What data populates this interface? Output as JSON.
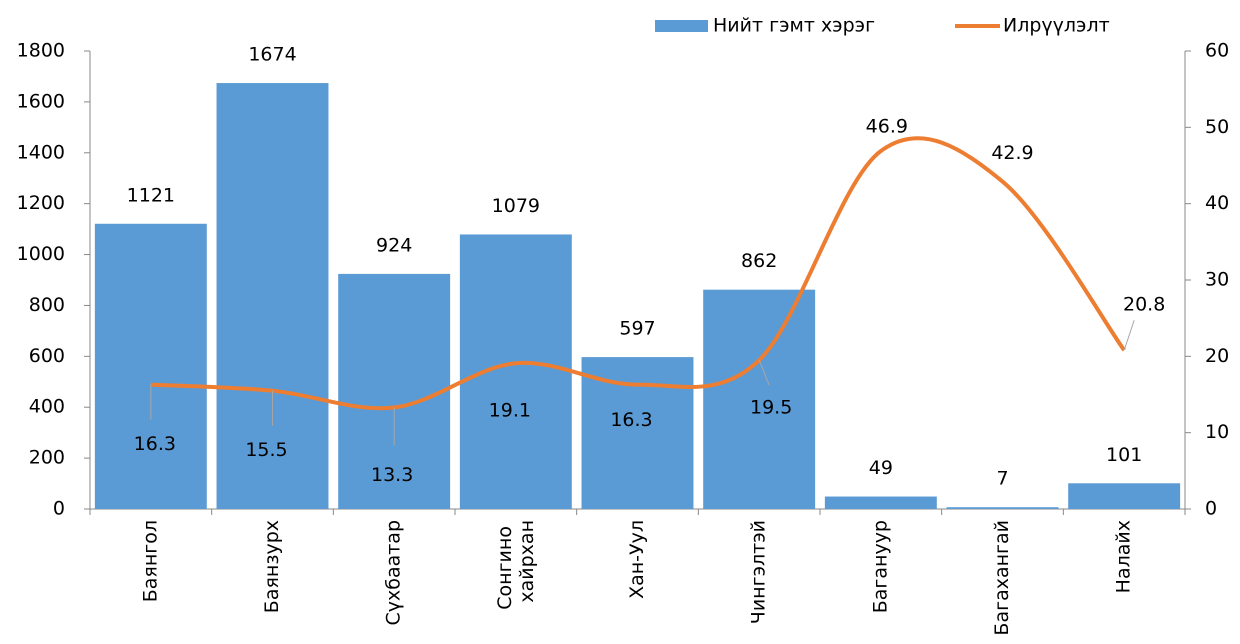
{
  "chart_data": {
    "type": "bar_line",
    "categories": [
      "Баянгол",
      "Баянзурх",
      "Сүхбаатар",
      "Сонгино хайрхан",
      "Хан-Уул",
      "Чингэлтэй",
      "Багануур",
      "Багахангай",
      "Налайх"
    ],
    "series": [
      {
        "name": "Нийт гэмт хэрэг",
        "color": "#5b9bd5",
        "type": "bar",
        "values": [
          1121,
          1674,
          924,
          1079,
          597,
          862,
          49,
          7,
          101
        ]
      },
      {
        "name": "Илрүүлэлт",
        "color": "#ed7d31",
        "type": "line",
        "axis": "y2",
        "values": [
          16.3,
          15.5,
          13.3,
          19.1,
          16.3,
          19.5,
          46.9,
          42.9,
          20.8
        ]
      }
    ],
    "ylim": [
      0,
      1800
    ],
    "yticks": [
      0,
      200,
      400,
      600,
      800,
      1000,
      1200,
      1400,
      1600,
      1800
    ],
    "y2lim": [
      0,
      60
    ],
    "y2ticks": [
      0,
      10,
      20,
      30,
      40,
      50,
      60
    ],
    "legend": "top-right"
  }
}
